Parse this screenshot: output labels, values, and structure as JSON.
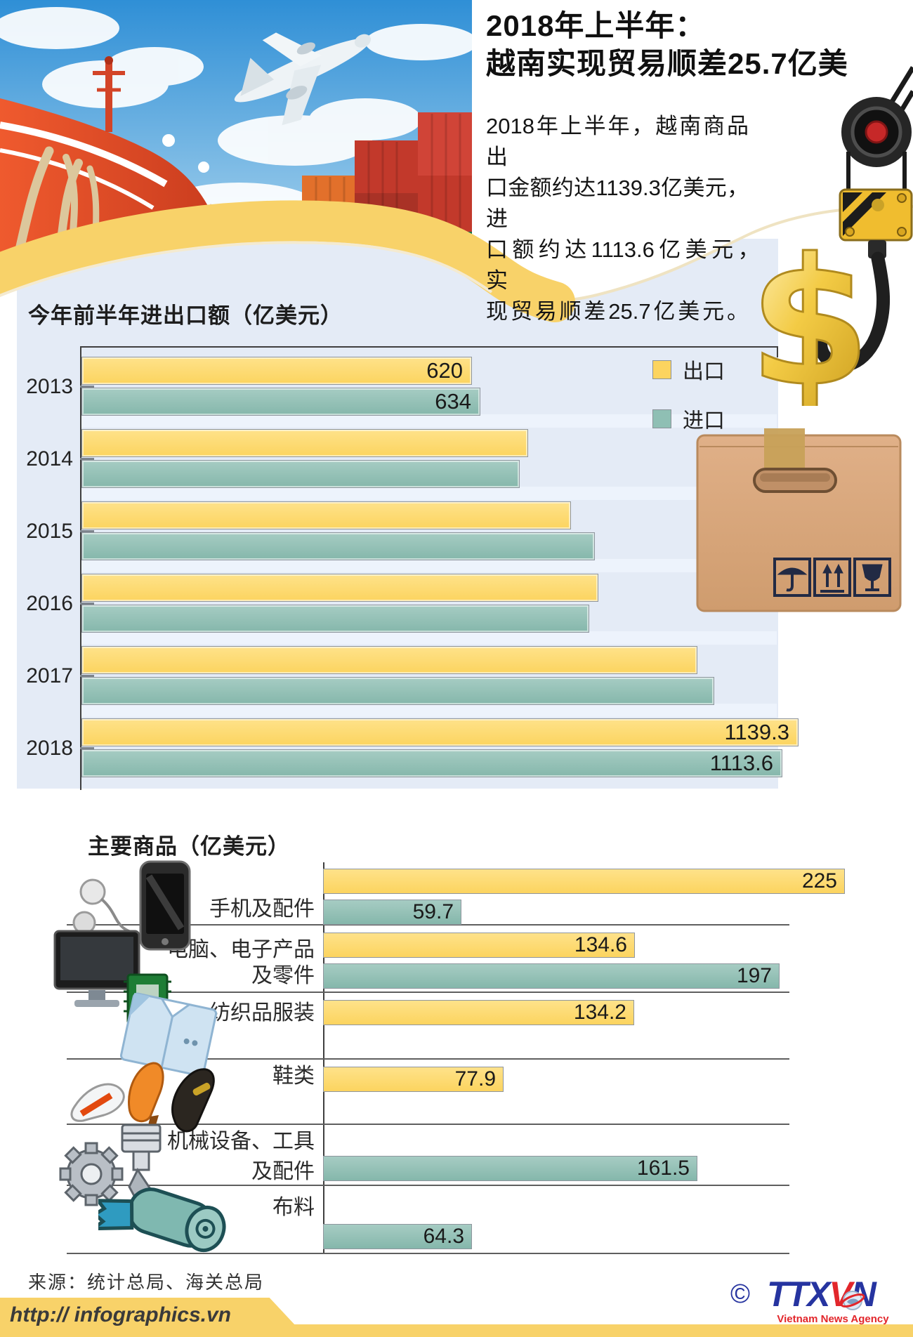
{
  "colors": {
    "accent_yellow": "#F8D269",
    "bar_yellow": "#FCD45F",
    "bar_teal": "#8FBFB4",
    "panel_blue": "#E4EBF6",
    "gap_stripe": "#EDF3FC",
    "ttx_blue": "#2634A0",
    "ttx_red": "#E2262B"
  },
  "header": {
    "title_line1": "2018年上半年：",
    "title_line2": "越南实现贸易顺差25.7亿美",
    "paragraph_lines": [
      "2018年上半年，越南商品出",
      "口金额约达1139.3亿美元，进",
      "口额约达1113.6亿美元，　实",
      "现贸易顺差25.7亿美元。"
    ]
  },
  "footer": {
    "source": "来源：统计总局、海关总局",
    "url": "http:// infographics.vn",
    "copyright_symbol": "©",
    "logo": {
      "ttx": "TTX",
      "v": "V",
      "n": "N",
      "tagline": "Vietnam News Agency"
    }
  },
  "chart_data": [
    {
      "type": "bar",
      "orientation": "horizontal",
      "title": "今年前半年进出口额（亿美元）",
      "categories": [
        "2013",
        "2014",
        "2015",
        "2016",
        "2017",
        "2018"
      ],
      "series": [
        {
          "name": "出口",
          "color": "#FCD45F",
          "values": [
            620,
            709,
            777,
            821,
            978,
            1139.3
          ],
          "shown_labels": [
            "620",
            "",
            "",
            "",
            "",
            "1139.3"
          ]
        },
        {
          "name": "进口",
          "color": "#8FBFB4",
          "values": [
            634,
            696,
            815,
            807,
            1005,
            1113.6
          ],
          "shown_labels": [
            "634",
            "",
            "",
            "",
            "",
            "1113.6"
          ]
        }
      ],
      "xlim": [
        0,
        1240
      ],
      "grid": false,
      "legend_position": "top-right",
      "note": "2014-2017 values are unlabeled in the figure and estimated from bar lengths"
    },
    {
      "type": "bar",
      "orientation": "horizontal",
      "title": "主要商品（亿美元）",
      "categories": [
        "手机及配件",
        "电脑、电子产品及零件",
        "纺织品服装",
        "鞋类",
        "机械设备、工具及配件",
        "布料"
      ],
      "category_lines": [
        [
          "手机及配件"
        ],
        [
          "电脑、电子产品",
          "及零件"
        ],
        [
          "纺织品服装"
        ],
        [
          "鞋类"
        ],
        [
          "机械设备、工具",
          "及配件"
        ],
        [
          "布料"
        ]
      ],
      "icons": [
        "phone-and-accessories",
        "computer-electronics-parts",
        "textiles-garments",
        "footwear",
        "machinery-tools-parts",
        "fabric"
      ],
      "series": [
        {
          "name": "出口",
          "color": "#FCD45F",
          "values": [
            225,
            134.6,
            134.2,
            77.9,
            null,
            null
          ],
          "shown_labels": [
            "225",
            "134.6",
            "134.2",
            "77.9",
            "",
            ""
          ]
        },
        {
          "name": "进口",
          "color": "#8FBFB4",
          "values": [
            59.7,
            197,
            null,
            null,
            161.5,
            64.3
          ],
          "shown_labels": [
            "59.7",
            "197",
            "",
            "",
            "161.5",
            "64.3"
          ]
        }
      ],
      "xlim": [
        0,
        240
      ],
      "grid": false
    }
  ]
}
